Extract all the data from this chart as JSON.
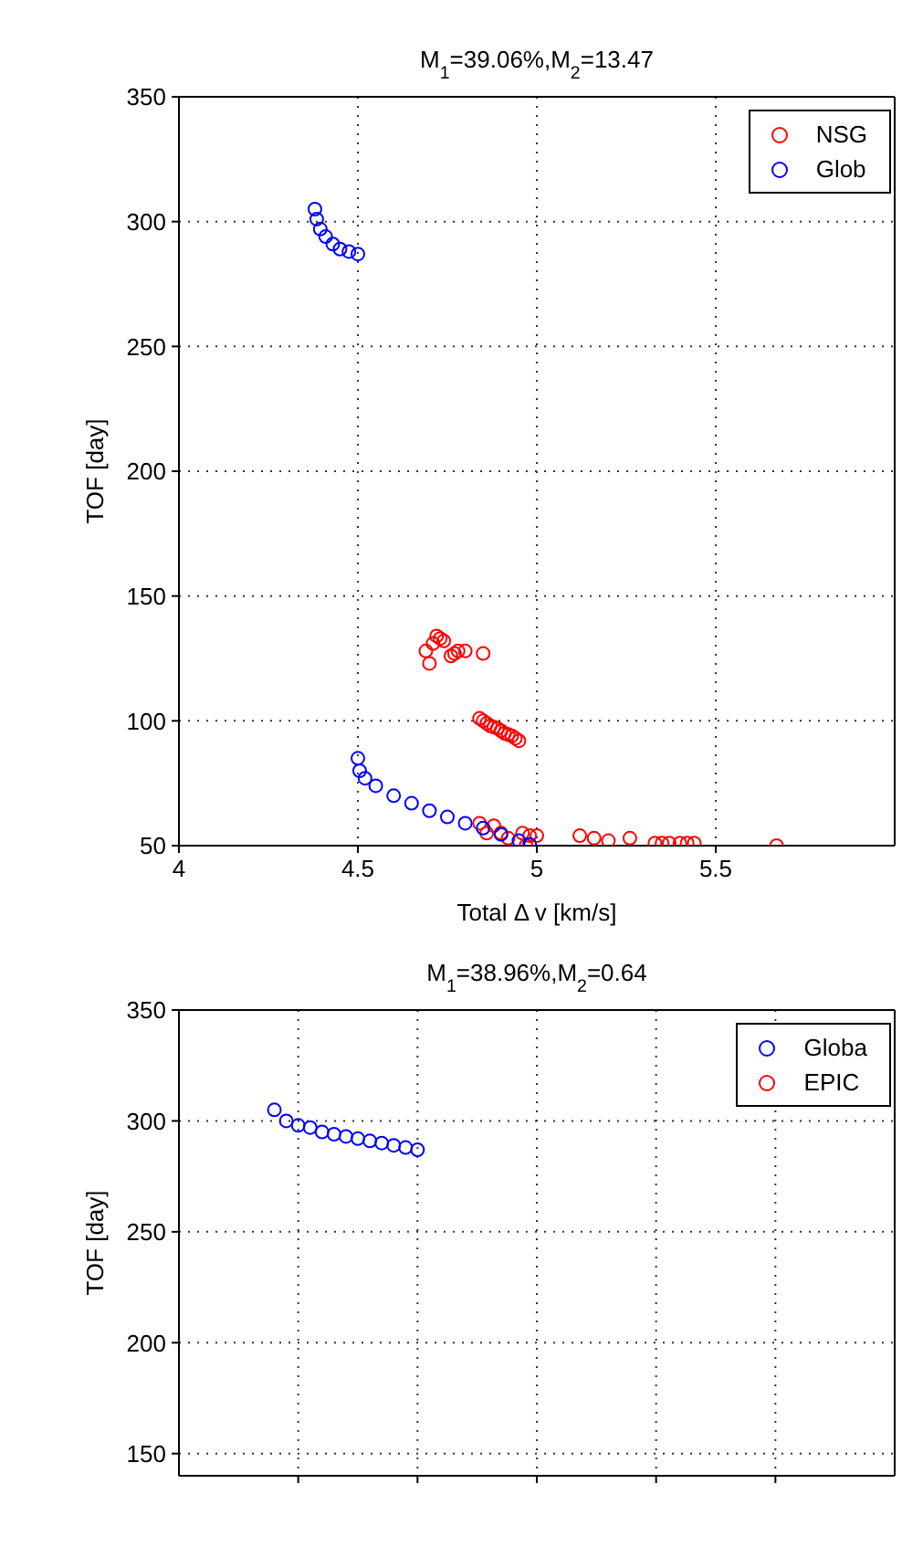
{
  "chart_data": [
    {
      "type": "scatter",
      "title": "M$_{1}$=39.06%,M$_{2}$=13.47",
      "xlabel": "Total Δ v [km/s]",
      "ylabel": "TOF [day]",
      "xlim": [
        4,
        6
      ],
      "xticks": [
        4,
        4.5,
        5,
        5.5
      ],
      "ylim": [
        50,
        350
      ],
      "yticks": [
        50,
        100,
        150,
        200,
        250,
        300,
        350
      ],
      "grid": true,
      "legend": "top right",
      "marker": "circle",
      "series": [
        {
          "name": "NSG",
          "color": "#ff0000",
          "x": [
            4.69,
            4.7,
            4.71,
            4.72,
            4.73,
            4.74,
            4.76,
            4.77,
            4.78,
            4.8,
            4.85,
            4.84,
            4.85,
            4.86,
            4.87,
            4.88,
            4.89,
            4.9,
            4.91,
            4.92,
            4.93,
            4.94,
            4.95,
            4.84,
            4.86,
            4.88,
            4.9,
            4.92,
            4.96,
            4.97,
            4.98,
            5.0,
            5.12,
            5.16,
            5.2,
            5.26,
            5.33,
            5.35,
            5.37,
            5.4,
            5.42,
            5.44,
            5.67
          ],
          "values": [
            128,
            123,
            131,
            134,
            133,
            132,
            126,
            127,
            128,
            128,
            127,
            101,
            100,
            99,
            98,
            97.5,
            97,
            96,
            95,
            94.5,
            94,
            93,
            92,
            59,
            55,
            58,
            55,
            53,
            55,
            50,
            54,
            54,
            54,
            53,
            52,
            53,
            51,
            51,
            51,
            51,
            51,
            51,
            50
          ]
        },
        {
          "name": "Glob",
          "color": "#0000ff",
          "x": [
            4.38,
            4.385,
            4.395,
            4.41,
            4.43,
            4.45,
            4.475,
            4.5,
            4.5,
            4.505,
            4.52,
            4.55,
            4.6,
            4.65,
            4.7,
            4.75,
            4.8,
            4.85,
            4.9,
            4.95,
            4.98
          ],
          "values": [
            305,
            301,
            297,
            294,
            291,
            289,
            288,
            287,
            85,
            80,
            77,
            74,
            70,
            67,
            64,
            61.5,
            59,
            57,
            54.5,
            52,
            50.5
          ]
        }
      ]
    },
    {
      "type": "scatter",
      "title": "M$_{1}$=38.96%,M$_{2}$=0.64",
      "ylabel": "TOF [day]",
      "categories": [
        null,
        null,
        null,
        null,
        null,
        null,
        null,
        null,
        null,
        null,
        null,
        null,
        null,
        null,
        null,
        null,
        null,
        null,
        null,
        null,
        null,
        null,
        null,
        null,
        null,
        null,
        null,
        null,
        null,
        null,
        null,
        null,
        null,
        null,
        null,
        null,
        null,
        null,
        null,
        null,
        null,
        null,
        null,
        null,
        null,
        null,
        null,
        null,
        null,
        null,
        null,
        null,
        null,
        null,
        null,
        null,
        null,
        null,
        null,
        null,
        null
      ],
      "ylim": [
        140,
        350
      ],
      "yticks": [
        150,
        200,
        250,
        300,
        350
      ],
      "tick_labels": "y",
      "grid": true,
      "legend": "top right",
      "marker": "circle",
      "series": [
        {
          "name": "Globa",
          "color": "#0000ff",
          "values": [
            null,
            null,
            null,
            null,
            null,
            null,
            null,
            null,
            305,
            300,
            298,
            297,
            295,
            294,
            293,
            292,
            291,
            290,
            289,
            288,
            287,
            null,
            null,
            null,
            null,
            null,
            null,
            null,
            null,
            null,
            null,
            null,
            null,
            null,
            null,
            null,
            null,
            null,
            null,
            null,
            null,
            null,
            null,
            null,
            null,
            null,
            null,
            null,
            null,
            null,
            null,
            null,
            null,
            null,
            null,
            null,
            null,
            null,
            null,
            null,
            null
          ]
        },
        {
          "name": "EPIC",
          "color": "#ff0000",
          "values": [
            null,
            null,
            null,
            null,
            null,
            null,
            null,
            null,
            null,
            null,
            null,
            null,
            null,
            null,
            null,
            null,
            null,
            null,
            null,
            null,
            null,
            null,
            null,
            null,
            null,
            null,
            null,
            null,
            null,
            null,
            null,
            null,
            null,
            null,
            null,
            null,
            null,
            null,
            null,
            null,
            null,
            null,
            null,
            null,
            null,
            null,
            null,
            null,
            null,
            null,
            null,
            null,
            null,
            null,
            null,
            null,
            null,
            null,
            null,
            null,
            null
          ]
        }
      ]
    }
  ]
}
